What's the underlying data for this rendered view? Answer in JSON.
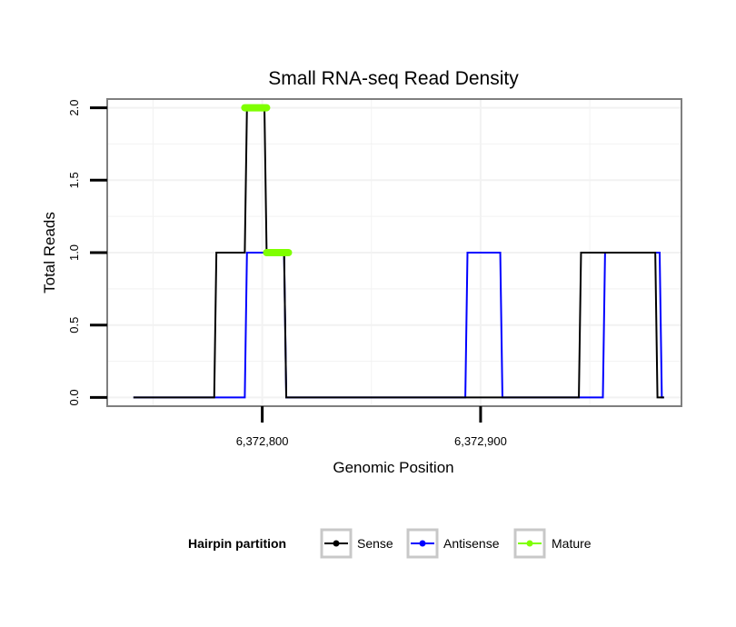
{
  "chart_data": {
    "type": "line",
    "title": "Small RNA-seq Read Density",
    "xlabel": "Genomic Position",
    "ylabel": "Total Reads",
    "xlim": [
      6372729,
      6372992
    ],
    "ylim": [
      -0.06,
      2.06
    ],
    "x_ticks": [
      6372800,
      6372900
    ],
    "x_tick_labels": [
      "6,372,800",
      "6,372,900"
    ],
    "y_ticks": [
      0,
      0.5,
      1,
      1.5,
      2
    ],
    "y_tick_labels": [
      "0.0",
      "0.5",
      "1.0",
      "1.5",
      "2.0"
    ],
    "grid": true,
    "legend": {
      "title": "Hairpin partition",
      "position": "bottom",
      "entries": [
        "Sense",
        "Antisense",
        "Mature"
      ]
    },
    "series": [
      {
        "name": "Sense",
        "color": "#000000",
        "x": [
          6372741,
          6372778,
          6372779,
          6372792,
          6372793,
          6372801,
          6372802,
          6372810,
          6372811,
          6372945,
          6372946,
          6372968,
          6372969,
          6372980,
          6372981,
          6372984
        ],
        "y": [
          0,
          0,
          1,
          1,
          2,
          2,
          1,
          1,
          0,
          0,
          1,
          1,
          1,
          1,
          0,
          0
        ]
      },
      {
        "name": "Antisense",
        "color": "#0000ff",
        "x": [
          6372741,
          6372792,
          6372793,
          6372810,
          6372811,
          6372893,
          6372894,
          6372909,
          6372910,
          6372956,
          6372957,
          6372982,
          6372983,
          6372984
        ],
        "y": [
          0,
          0,
          1,
          1,
          0,
          0,
          1,
          1,
          0,
          0,
          1,
          1,
          0,
          0
        ]
      },
      {
        "name": "Mature",
        "color": "#7fff00",
        "segments": [
          {
            "x": [
              6372792,
              6372802
            ],
            "y": 2
          },
          {
            "x": [
              6372802,
              6372812
            ],
            "y": 1
          }
        ]
      }
    ]
  }
}
